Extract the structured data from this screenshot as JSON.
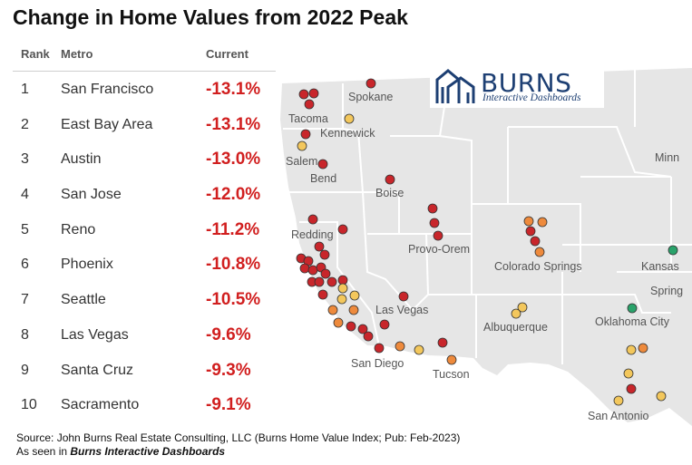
{
  "title": "Change in Home Values from 2022 Peak",
  "table": {
    "headers": {
      "rank": "Rank",
      "metro": "Metro",
      "current": "Current"
    },
    "rows": [
      {
        "rank": "1",
        "metro": "San Francisco",
        "current": "-13.1%"
      },
      {
        "rank": "2",
        "metro": "East Bay Area",
        "current": "-13.1%"
      },
      {
        "rank": "3",
        "metro": "Austin",
        "current": "-13.0%"
      },
      {
        "rank": "4",
        "metro": "San Jose",
        "current": "-12.0%"
      },
      {
        "rank": "5",
        "metro": "Reno",
        "current": "-11.2%"
      },
      {
        "rank": "6",
        "metro": "Phoenix",
        "current": "-10.8%"
      },
      {
        "rank": "7",
        "metro": "Seattle",
        "current": "-10.5%"
      },
      {
        "rank": "8",
        "metro": "Las Vegas",
        "current": "-9.6%"
      },
      {
        "rank": "9",
        "metro": "Santa Cruz",
        "current": "-9.3%"
      },
      {
        "rank": "10",
        "metro": "Sacramento",
        "current": "-9.1%"
      }
    ]
  },
  "logo": {
    "brand": "BURNS",
    "tagline": "Interactive Dashboards"
  },
  "map": {
    "labels": {
      "spokane": "Spokane",
      "tacoma": "Tacoma",
      "kennewick": "Kennewick",
      "salem": "Salem",
      "bend": "Bend",
      "boise": "Boise",
      "redding": "Redding",
      "provo_orem": "Provo-Orem",
      "colorado_springs": "Colorado Springs",
      "kansas": "Kansas",
      "springfield": "Spring",
      "minneapolis": "Minn",
      "las_vegas": "Las Vegas",
      "albuquerque": "Albuquerque",
      "oklahoma_city": "Oklahoma City",
      "san_diego": "San Diego",
      "tucson": "Tucson",
      "san_antonio": "San Antonio"
    },
    "colors": {
      "red": "#c8262b",
      "orange": "#ee8a3c",
      "yellow": "#f3c75c",
      "green": "#2aa36b",
      "land": "#e6e6e6",
      "border": "#ffffff"
    }
  },
  "source": {
    "line1": "Source: John Burns Real Estate Consulting, LLC (Burns Home Value Index; Pub: Feb-2023)",
    "line2_prefix": "As seen in ",
    "line2_brand": "Burns Interactive Dashboards"
  }
}
